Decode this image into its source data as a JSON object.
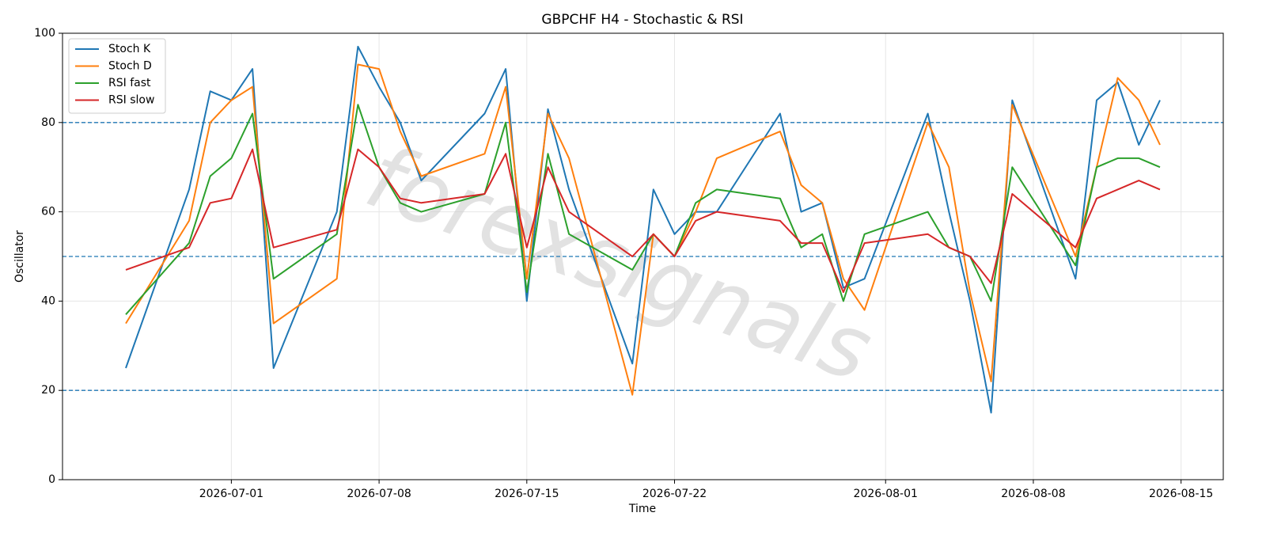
{
  "chart_data": {
    "type": "line",
    "title": "GBPCHF H4 - Stochastic & RSI",
    "xlabel": "Time",
    "ylabel": "Oscillator",
    "watermark": "forexsignals",
    "x": [
      "2026-06-26",
      "2026-06-29",
      "2026-06-30",
      "2026-07-01",
      "2026-07-02",
      "2026-07-03",
      "2026-07-06",
      "2026-07-07",
      "2026-07-08",
      "2026-07-09",
      "2026-07-10",
      "2026-07-13",
      "2026-07-14",
      "2026-07-15",
      "2026-07-16",
      "2026-07-17",
      "2026-07-20",
      "2026-07-21",
      "2026-07-22",
      "2026-07-23",
      "2026-07-24",
      "2026-07-27",
      "2026-07-28",
      "2026-07-29",
      "2026-07-30",
      "2026-07-31",
      "2026-08-03",
      "2026-08-04",
      "2026-08-05",
      "2026-08-06",
      "2026-08-07",
      "2026-08-10",
      "2026-08-11",
      "2026-08-12",
      "2026-08-13",
      "2026-08-14"
    ],
    "series": [
      {
        "name": "Stoch K",
        "color": "#1f77b4",
        "values": [
          25,
          65,
          87,
          85,
          92,
          25,
          60,
          97,
          88,
          80,
          67,
          82,
          92,
          40,
          83,
          65,
          26,
          65,
          55,
          60,
          60,
          82,
          60,
          62,
          43,
          45,
          82,
          60,
          40,
          15,
          85,
          45,
          85,
          89,
          75,
          85
        ]
      },
      {
        "name": "Stoch D",
        "color": "#ff7f0e",
        "values": [
          35,
          58,
          80,
          85,
          88,
          35,
          45,
          93,
          92,
          78,
          68,
          73,
          88,
          45,
          82,
          72,
          19,
          55,
          50,
          60,
          72,
          78,
          66,
          62,
          45,
          38,
          80,
          70,
          42,
          22,
          84,
          50,
          70,
          90,
          85,
          75
        ]
      },
      {
        "name": "RSI fast",
        "color": "#2ca02c",
        "values": [
          37,
          53,
          68,
          72,
          82,
          45,
          55,
          84,
          70,
          62,
          60,
          64,
          80,
          42,
          73,
          55,
          47,
          55,
          50,
          62,
          65,
          63,
          52,
          55,
          40,
          55,
          60,
          52,
          50,
          40,
          70,
          48,
          70,
          72,
          72,
          70
        ]
      },
      {
        "name": "RSI slow",
        "color": "#d62728",
        "values": [
          47,
          52,
          62,
          63,
          74,
          52,
          56,
          74,
          70,
          63,
          62,
          64,
          73,
          52,
          70,
          60,
          50,
          55,
          50,
          58,
          60,
          58,
          53,
          53,
          42,
          53,
          55,
          52,
          50,
          44,
          64,
          52,
          63,
          65,
          67,
          65
        ]
      }
    ],
    "xlim": [
      "2026-06-23",
      "2026-08-17"
    ],
    "xticks": [
      "2026-07-01",
      "2026-07-08",
      "2026-07-15",
      "2026-07-22",
      "2026-08-01",
      "2026-08-08",
      "2026-08-15"
    ],
    "ylim": [
      0,
      100
    ],
    "yticks": [
      0,
      20,
      40,
      60,
      80,
      100
    ],
    "hlines": [
      20,
      50,
      80
    ],
    "hline_color": "#1f77b4",
    "grid": true,
    "legend": "upper left"
  }
}
